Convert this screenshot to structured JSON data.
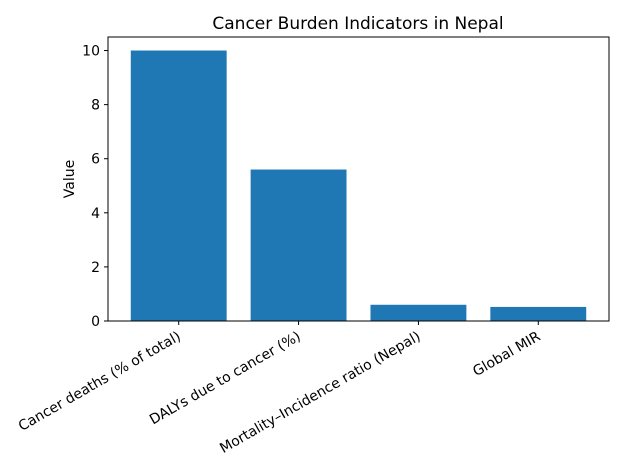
{
  "chart_data": {
    "type": "bar",
    "title": "Cancer Burden Indicators in Nepal",
    "xlabel": "",
    "ylabel": "Value",
    "categories": [
      "Cancer deaths (% of total)",
      "DALYs due to cancer (%)",
      "Mortality–Incidence ratio (Nepal)",
      "Global MIR"
    ],
    "values": [
      10,
      5.6,
      0.6,
      0.52
    ],
    "ylim": [
      0,
      10.5
    ],
    "yticks": [
      0,
      2,
      4,
      6,
      8,
      10
    ],
    "grid": false,
    "bar_color": "#1f77b4"
  }
}
